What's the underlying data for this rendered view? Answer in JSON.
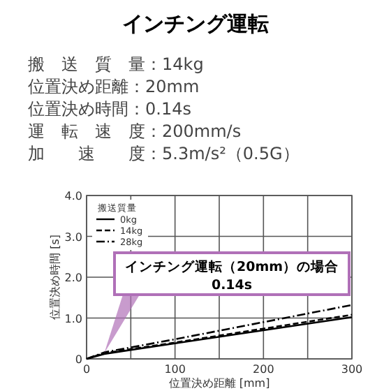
{
  "chart_data": {
    "type": "line",
    "title": "インチング運転",
    "subtitle": "搬　送　質　量：14kg\n位置決め距離：20mm\n位置決め時間：0.14s\n運　転　速　度：200mm/s\n加　　速　　度：5.3m/s²（0.5G）",
    "x": [
      0,
      20,
      50,
      100,
      200,
      300
    ],
    "series": [
      {
        "name": "0kg",
        "color": "#000000",
        "line_style": "solid",
        "values": [
          0,
          0.12,
          0.22,
          0.38,
          0.7,
          1.02
        ]
      },
      {
        "name": "14kg",
        "color": "#000000",
        "line_style": "dashed",
        "values": [
          0,
          0.14,
          0.24,
          0.4,
          0.74,
          1.08
        ]
      },
      {
        "name": "28kg",
        "color": "#000000",
        "line_style": "dashdot",
        "values": [
          0,
          0.16,
          0.28,
          0.48,
          0.9,
          1.32
        ]
      }
    ],
    "xlim": [
      0,
      300
    ],
    "ylim": [
      0,
      4
    ],
    "xticks": [
      0,
      {
        "value": 50,
        "label": null
      },
      100,
      {
        "value": 150,
        "label": null
      },
      200,
      {
        "value": 250,
        "label": null
      },
      300
    ],
    "yticks": [
      0,
      {
        "value": 1,
        "label": "1.0"
      },
      {
        "value": 2,
        "label": "2.0"
      },
      {
        "value": 3,
        "label": "3.0"
      },
      {
        "value": 4,
        "label": "4.0"
      }
    ],
    "xlabel": "位置決め距離 [mm]",
    "ylabel": "位置決め時間 [s]",
    "legend_title": "搬送質量",
    "legend": "top left",
    "grid": true,
    "annotations": [
      "インチング運転（20mm）の場合\n0.14s"
    ]
  }
}
